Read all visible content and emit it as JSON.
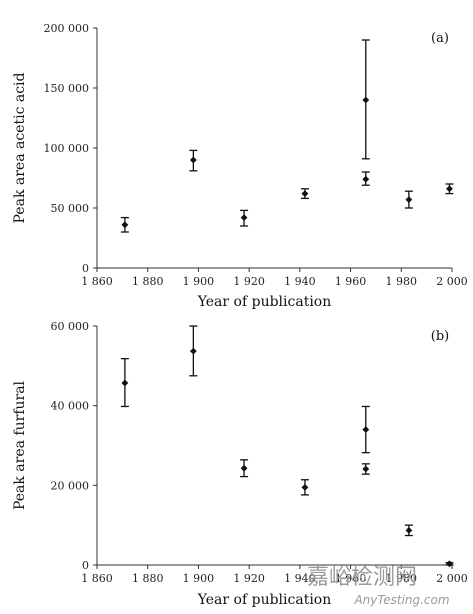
{
  "chart_data": [
    {
      "type": "scatter",
      "panel_label": "(a)",
      "xlabel": "Year of publication",
      "ylabel": "Peak area acetic acid",
      "xlim": [
        1860,
        2000
      ],
      "ylim": [
        0,
        200000
      ],
      "x_ticks": [
        1860,
        1880,
        1900,
        1920,
        1940,
        1960,
        1980,
        2000
      ],
      "x_tick_labels": [
        "1 860",
        "1 880",
        "1 900",
        "1 920",
        "1 940",
        "1 960",
        "1 980",
        "2 000"
      ],
      "y_ticks": [
        0,
        50000,
        100000,
        150000,
        200000
      ],
      "y_tick_labels": [
        "0",
        "50 000",
        "100 000",
        "150 000",
        "200 000"
      ],
      "error_bars": true,
      "points": [
        {
          "x": 1871,
          "y": 36000,
          "err_low": 30000,
          "err_high": 42000
        },
        {
          "x": 1898,
          "y": 90000,
          "err_low": 81000,
          "err_high": 98000
        },
        {
          "x": 1918,
          "y": 42000,
          "err_low": 35000,
          "err_high": 48000
        },
        {
          "x": 1942,
          "y": 62000,
          "err_low": 58000,
          "err_high": 66000
        },
        {
          "x": 1966,
          "y": 74000,
          "err_low": 69000,
          "err_high": 80000
        },
        {
          "x": 1966,
          "y": 140000,
          "err_low": 91000,
          "err_high": 190000
        },
        {
          "x": 1983,
          "y": 57000,
          "err_low": 50000,
          "err_high": 64000
        },
        {
          "x": 1999,
          "y": 66000,
          "err_low": 62000,
          "err_high": 70000
        }
      ]
    },
    {
      "type": "scatter",
      "panel_label": "(b)",
      "xlabel": "Year of publication",
      "ylabel": "Peak area furfural",
      "xlim": [
        1860,
        2000
      ],
      "ylim": [
        0,
        60000
      ],
      "x_ticks": [
        1860,
        1880,
        1900,
        1920,
        1940,
        1960,
        1980,
        2000
      ],
      "x_tick_labels": [
        "1 860",
        "1 880",
        "1 900",
        "1 920",
        "1 940",
        "1 960",
        "1 980",
        "2 000"
      ],
      "y_ticks": [
        0,
        20000,
        40000,
        60000
      ],
      "y_tick_labels": [
        "0",
        "20 000",
        "40 000",
        "60 000"
      ],
      "error_bars": true,
      "points": [
        {
          "x": 1871,
          "y": 45700,
          "err_low": 39800,
          "err_high": 51800
        },
        {
          "x": 1898,
          "y": 53700,
          "err_low": 47500,
          "err_high": 60000
        },
        {
          "x": 1918,
          "y": 24300,
          "err_low": 22200,
          "err_high": 26400
        },
        {
          "x": 1942,
          "y": 19500,
          "err_low": 17600,
          "err_high": 21400
        },
        {
          "x": 1966,
          "y": 24100,
          "err_low": 22800,
          "err_high": 25400
        },
        {
          "x": 1966,
          "y": 34000,
          "err_low": 28200,
          "err_high": 39800
        },
        {
          "x": 1983,
          "y": 8700,
          "err_low": 7400,
          "err_high": 10000
        },
        {
          "x": 1999,
          "y": 300,
          "err_low": 0,
          "err_high": 600
        }
      ]
    }
  ],
  "watermark": {
    "text": "嘉峪检测网",
    "subtext": "AnyTesting.com"
  }
}
